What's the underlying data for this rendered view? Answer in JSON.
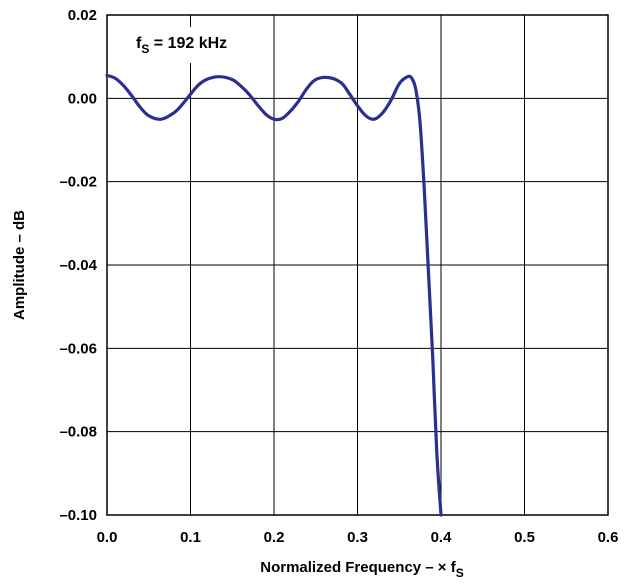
{
  "chart_data": {
    "type": "line",
    "xlabel": "Normalized Frequency – × f",
    "xlabel_sub": "S",
    "ylabel": "Amplitude – dB",
    "annotation": "f",
    "annotation_sub": "S",
    "annotation_rest": " = 192 kHz",
    "xlim": [
      0.0,
      0.6
    ],
    "ylim": [
      -0.1,
      0.02
    ],
    "grid": true,
    "x_ticks": [
      "0.0",
      "0.1",
      "0.2",
      "0.3",
      "0.4",
      "0.5",
      "0.6"
    ],
    "y_ticks": [
      "0.02",
      "0.00",
      "–0.02",
      "–0.04",
      "–0.06",
      "–0.08",
      "–0.10"
    ],
    "x_tick_values": [
      0.0,
      0.1,
      0.2,
      0.3,
      0.4,
      0.5,
      0.6
    ],
    "y_tick_values": [
      0.02,
      0.0,
      -0.02,
      -0.04,
      -0.06,
      -0.08,
      -0.1
    ],
    "series": [
      {
        "color": "#2b2f8f",
        "x": [
          0.0,
          0.01,
          0.02,
          0.03,
          0.04,
          0.05,
          0.065,
          0.08,
          0.09,
          0.1,
          0.11,
          0.12,
          0.135,
          0.15,
          0.16,
          0.17,
          0.18,
          0.19,
          0.2,
          0.21,
          0.22,
          0.23,
          0.24,
          0.25,
          0.265,
          0.28,
          0.29,
          0.3,
          0.31,
          0.32,
          0.33,
          0.34,
          0.35,
          0.36,
          0.365,
          0.37,
          0.375,
          0.38,
          0.385,
          0.39,
          0.395,
          0.4
        ],
        "y": [
          0.0055,
          0.0048,
          0.003,
          0.0005,
          -0.0022,
          -0.0042,
          -0.005,
          -0.0035,
          -0.0015,
          0.001,
          0.0033,
          0.0046,
          0.0052,
          0.0045,
          0.003,
          0.001,
          -0.0015,
          -0.0038,
          -0.005,
          -0.0048,
          -0.003,
          -0.0005,
          0.0025,
          0.0045,
          0.005,
          0.0038,
          0.0012,
          -0.0018,
          -0.0042,
          -0.005,
          -0.0035,
          -0.0005,
          0.0035,
          0.0052,
          0.0048,
          0.002,
          -0.006,
          -0.022,
          -0.042,
          -0.062,
          -0.085,
          -0.1
        ]
      }
    ]
  }
}
